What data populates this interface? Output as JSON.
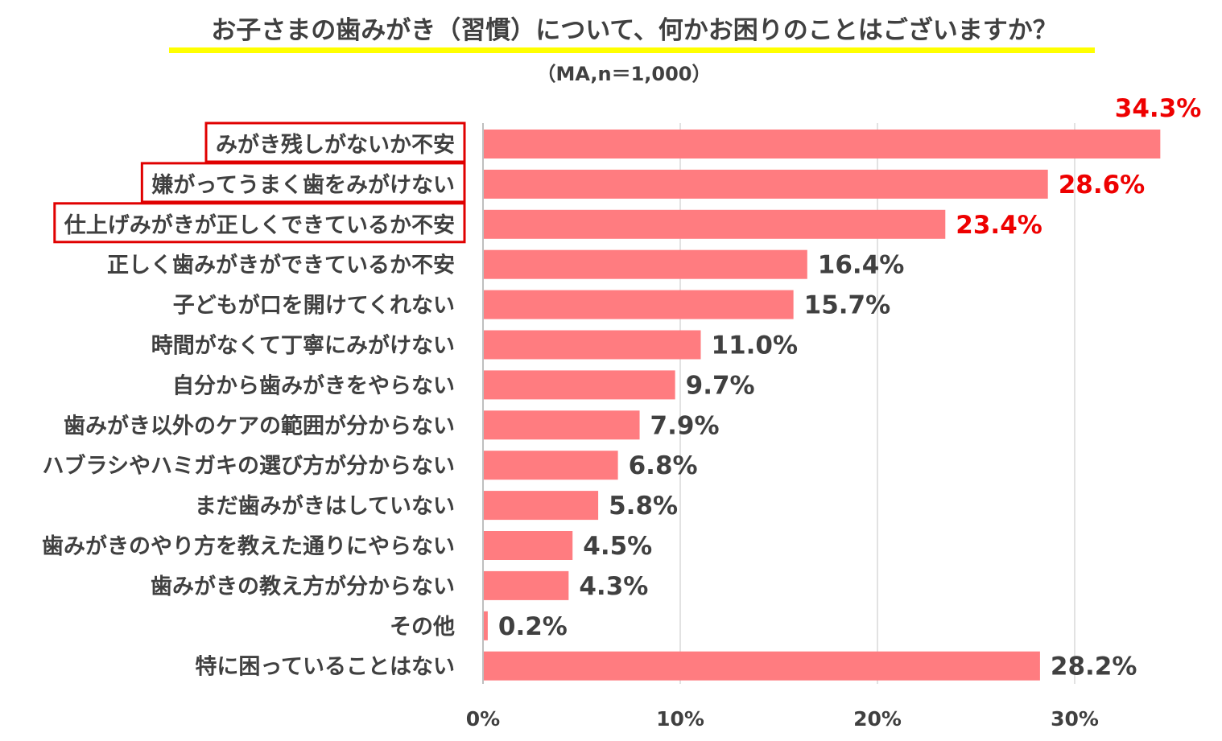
{
  "title": "お子さまの歯みがき（習慣）について、何かお困りのことはございますか？",
  "subtitle": "（MA,n＝1,000）",
  "colors": {
    "bar": "#ff7c80",
    "highlight_text": "#ee0000",
    "highlight_box": "#e00000",
    "normal_text": "#404040",
    "title_underline": "#ffff00",
    "grid": "#d9d9d9",
    "axis": "#bfbfbf"
  },
  "chart_data": {
    "type": "bar",
    "orientation": "horizontal",
    "title": "お子さまの歯みがき（習慣）について、何かお困りのことはございますか？",
    "subtitle": "（MA,n＝1,000）",
    "xlim": [
      0,
      34.3
    ],
    "x_ticks": [
      0,
      10,
      20,
      30
    ],
    "x_tick_labels": [
      "0%",
      "10%",
      "20%",
      "30%"
    ],
    "grid": true,
    "categories": [
      "みがき残しがないか不安",
      "嫌がってうまく歯をみがけない",
      "仕上げみがきが正しくできているか不安",
      "正しく歯みがきができているか不安",
      "子どもが口を開けてくれない",
      "時間がなくて丁寧にみがけない",
      "自分から歯みがきをやらない",
      "歯みがき以外のケアの範囲が分からない",
      "ハブラシやハミガキの選び方が分からない",
      "まだ歯みがきはしていない",
      "歯みがきのやり方を教えた通りにやらない",
      "歯みがきの教え方が分からない",
      "その他",
      "特に困っていることはない"
    ],
    "values": [
      34.3,
      28.6,
      23.4,
      16.4,
      15.7,
      11.0,
      9.7,
      7.9,
      6.8,
      5.8,
      4.5,
      4.3,
      0.2,
      28.2
    ],
    "value_labels": [
      "34.3%",
      "28.6%",
      "23.4%",
      "16.4%",
      "15.7%",
      "11.0%",
      "9.7%",
      "7.9%",
      "6.8%",
      "5.8%",
      "4.5%",
      "4.3%",
      "0.2%",
      "28.2%"
    ],
    "highlighted": [
      true,
      true,
      true,
      false,
      false,
      false,
      false,
      false,
      false,
      false,
      false,
      false,
      false,
      false
    ]
  }
}
